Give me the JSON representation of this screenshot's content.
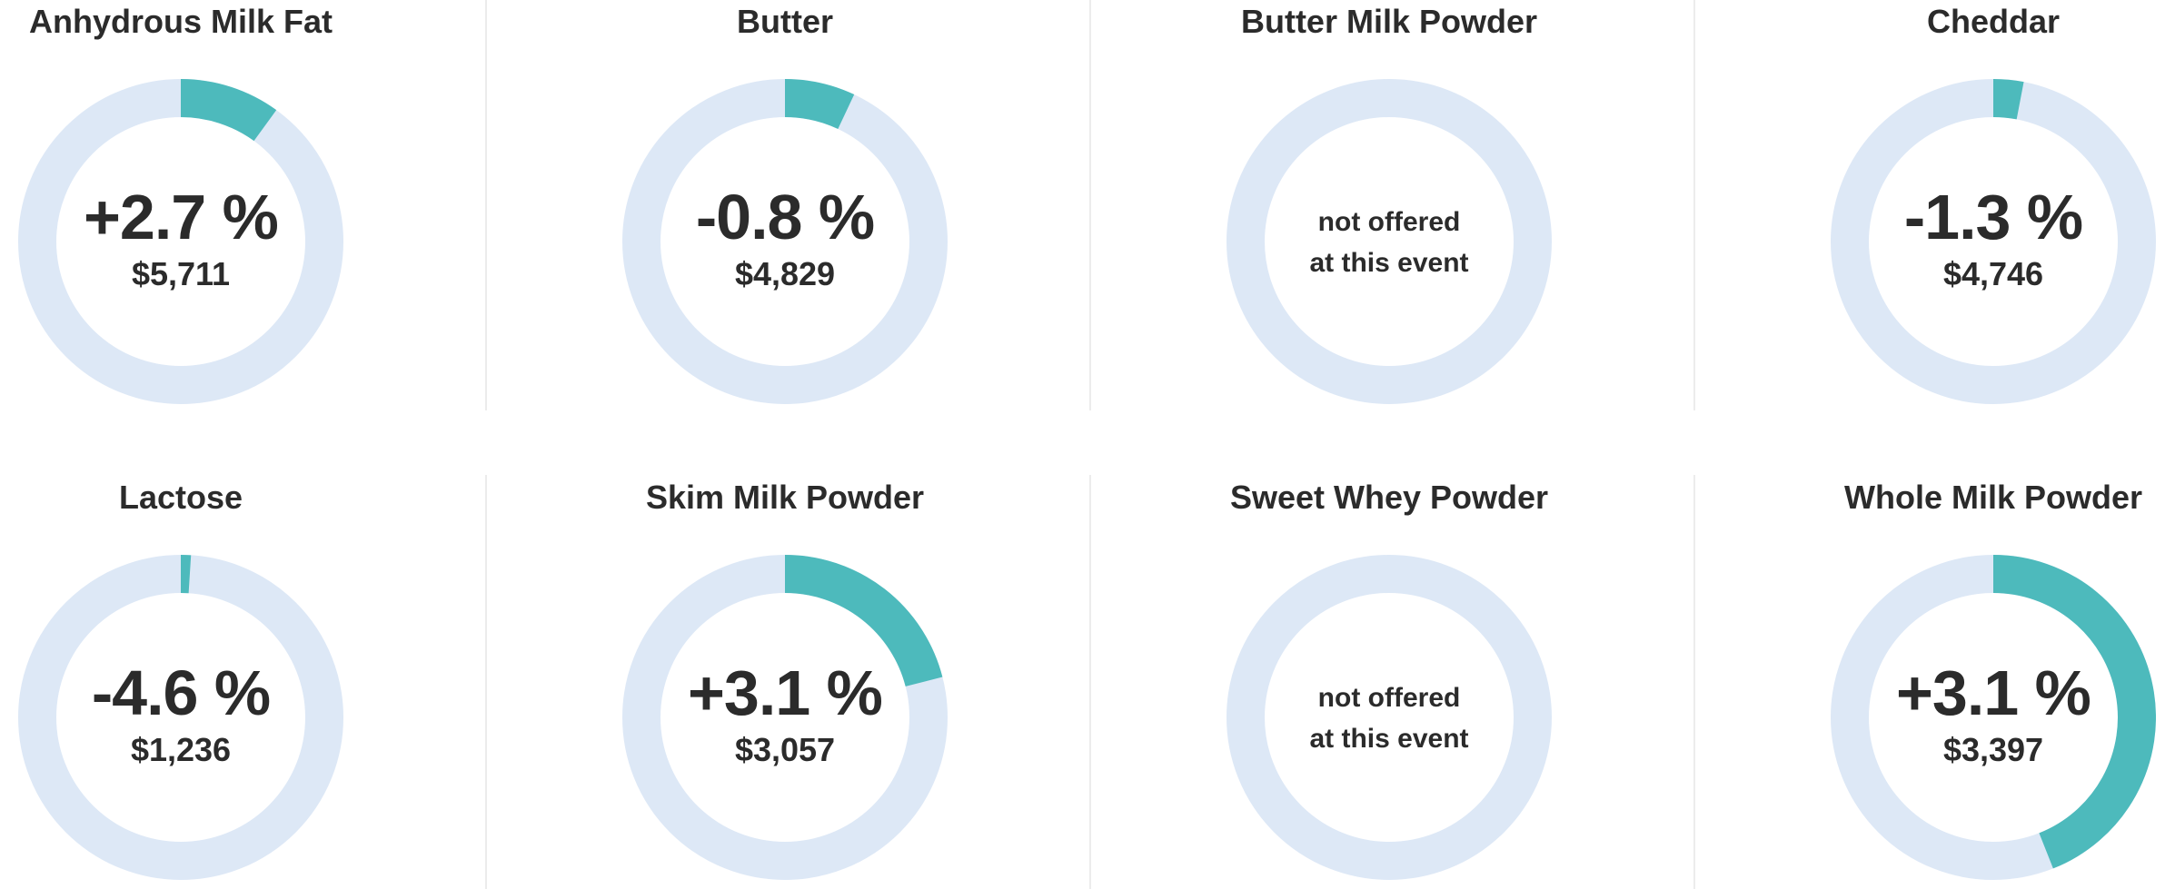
{
  "colors": {
    "track": "#dde8f6",
    "fill": "#4dbabc",
    "text": "#2b2b2b",
    "divider": "#ececec"
  },
  "chart_data": [
    {
      "type": "donut",
      "title": "Anhydrous Milk Fat",
      "change": "+2.7 %",
      "price": "$5,711",
      "offered": true,
      "fill_fraction": 0.1
    },
    {
      "type": "donut",
      "title": "Butter",
      "change": "-0.8 %",
      "price": "$4,829",
      "offered": true,
      "fill_fraction": 0.07
    },
    {
      "type": "donut",
      "title": "Butter Milk Powder",
      "offered": false,
      "not_offered_line1": "not offered",
      "not_offered_line2": "at this event"
    },
    {
      "type": "donut",
      "title": "Cheddar",
      "change": "-1.3 %",
      "price": "$4,746",
      "offered": true,
      "fill_fraction": 0.03
    },
    {
      "type": "donut",
      "title": "Lactose",
      "change": "-4.6 %",
      "price": "$1,236",
      "offered": true,
      "fill_fraction": 0.01
    },
    {
      "type": "donut",
      "title": "Skim Milk Powder",
      "change": "+3.1 %",
      "price": "$3,057",
      "offered": true,
      "fill_fraction": 0.21
    },
    {
      "type": "donut",
      "title": "Sweet Whey Powder",
      "offered": false,
      "not_offered_line1": "not offered",
      "not_offered_line2": "at this event"
    },
    {
      "type": "donut",
      "title": "Whole Milk Powder",
      "change": "+3.1 %",
      "price": "$3,397",
      "offered": true,
      "fill_fraction": 0.44
    }
  ]
}
